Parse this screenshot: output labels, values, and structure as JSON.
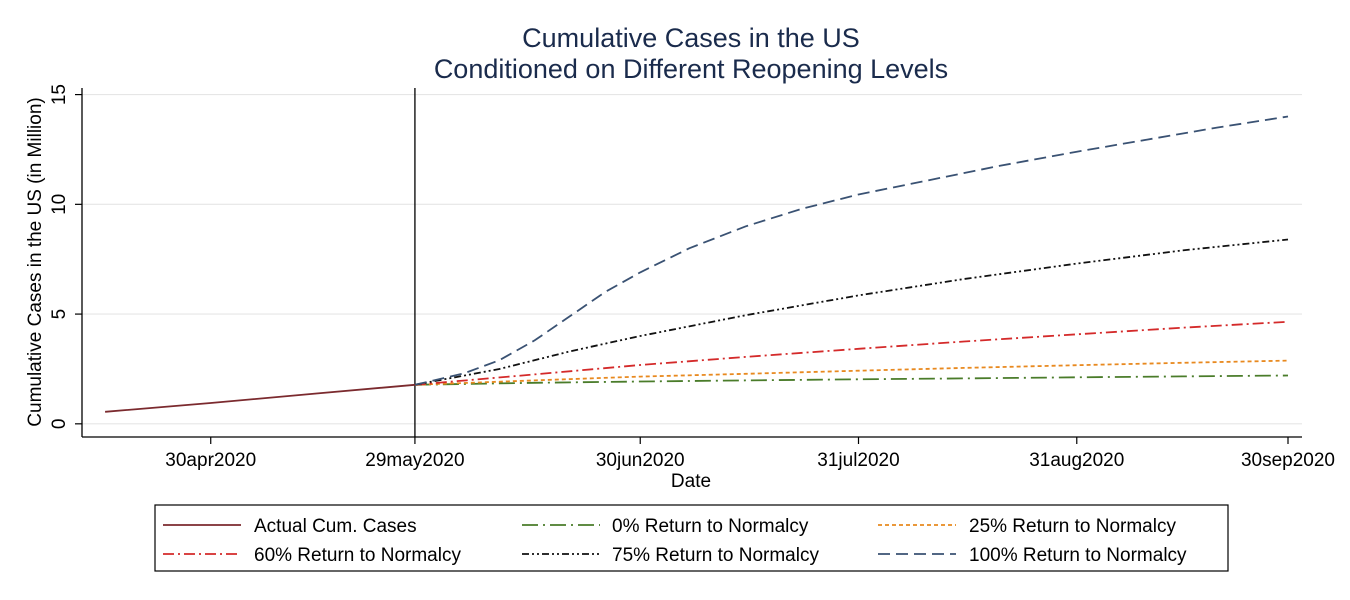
{
  "chart_data": {
    "type": "line",
    "title": "Cumulative Cases in the US",
    "subtitle": "Conditioned on Different Reopening Levels",
    "xlabel": "Date",
    "ylabel": "Cumulative Cases in the US (in Million)",
    "xlim": [
      "2020-04-15",
      "2020-09-30"
    ],
    "ylim": [
      0,
      15
    ],
    "grid": true,
    "legend_position": "bottom",
    "vline": "2020-05-29",
    "x_ticks": [
      {
        "date": "2020-04-30",
        "label": "30apr2020"
      },
      {
        "date": "2020-05-29",
        "label": "29may2020"
      },
      {
        "date": "2020-06-30",
        "label": "30jun2020"
      },
      {
        "date": "2020-07-31",
        "label": "31jul2020"
      },
      {
        "date": "2020-08-31",
        "label": "31aug2020"
      },
      {
        "date": "2020-09-30",
        "label": "30sep2020"
      }
    ],
    "y_ticks": [
      0,
      5,
      10,
      15
    ],
    "series": [
      {
        "name": "Actual Cum. Cases",
        "color": "#7b2a2e",
        "dash": "solid",
        "points": [
          [
            "2020-04-15",
            0.55
          ],
          [
            "2020-04-30",
            0.95
          ],
          [
            "2020-05-15",
            1.38
          ],
          [
            "2020-05-29",
            1.78
          ]
        ]
      },
      {
        "name": "0% Return to Normalcy",
        "color": "#4a7c2a",
        "dash": "longdash-dot",
        "points": [
          [
            "2020-05-29",
            1.78
          ],
          [
            "2020-06-15",
            1.87
          ],
          [
            "2020-06-30",
            1.93
          ],
          [
            "2020-07-15",
            1.98
          ],
          [
            "2020-07-31",
            2.03
          ],
          [
            "2020-08-15",
            2.07
          ],
          [
            "2020-08-31",
            2.12
          ],
          [
            "2020-09-15",
            2.16
          ],
          [
            "2020-09-30",
            2.2
          ]
        ]
      },
      {
        "name": "25% Return to Normalcy",
        "color": "#e8891f",
        "dash": "shortdash",
        "points": [
          [
            "2020-05-29",
            1.78
          ],
          [
            "2020-06-15",
            1.98
          ],
          [
            "2020-06-30",
            2.15
          ],
          [
            "2020-07-15",
            2.28
          ],
          [
            "2020-07-31",
            2.42
          ],
          [
            "2020-08-15",
            2.55
          ],
          [
            "2020-08-31",
            2.67
          ],
          [
            "2020-09-15",
            2.78
          ],
          [
            "2020-09-30",
            2.88
          ]
        ]
      },
      {
        "name": "60% Return to Normalcy",
        "color": "#d42a2a",
        "dash": "dash-dot",
        "points": [
          [
            "2020-05-29",
            1.78
          ],
          [
            "2020-06-15",
            2.25
          ],
          [
            "2020-06-30",
            2.68
          ],
          [
            "2020-07-15",
            3.05
          ],
          [
            "2020-07-31",
            3.42
          ],
          [
            "2020-08-15",
            3.75
          ],
          [
            "2020-08-31",
            4.08
          ],
          [
            "2020-09-15",
            4.38
          ],
          [
            "2020-09-30",
            4.65
          ]
        ]
      },
      {
        "name": "75% Return to Normalcy",
        "color": "#111111",
        "dash": "dash-dot-dot",
        "points": [
          [
            "2020-05-29",
            1.78
          ],
          [
            "2020-06-10",
            2.5
          ],
          [
            "2020-06-20",
            3.3
          ],
          [
            "2020-06-30",
            4.0
          ],
          [
            "2020-07-15",
            4.95
          ],
          [
            "2020-07-31",
            5.85
          ],
          [
            "2020-08-15",
            6.6
          ],
          [
            "2020-08-31",
            7.3
          ],
          [
            "2020-09-15",
            7.9
          ],
          [
            "2020-09-30",
            8.4
          ]
        ]
      },
      {
        "name": "100% Return to Normalcy",
        "color": "#3a5273",
        "dash": "longdash",
        "points": [
          [
            "2020-05-29",
            1.78
          ],
          [
            "2020-06-05",
            2.3
          ],
          [
            "2020-06-10",
            2.9
          ],
          [
            "2020-06-15",
            3.8
          ],
          [
            "2020-06-20",
            4.9
          ],
          [
            "2020-06-25",
            6.0
          ],
          [
            "2020-06-30",
            6.9
          ],
          [
            "2020-07-07",
            8.0
          ],
          [
            "2020-07-15",
            9.0
          ],
          [
            "2020-07-23",
            9.8
          ],
          [
            "2020-07-31",
            10.45
          ],
          [
            "2020-08-10",
            11.1
          ],
          [
            "2020-08-20",
            11.75
          ],
          [
            "2020-08-31",
            12.4
          ],
          [
            "2020-09-10",
            12.95
          ],
          [
            "2020-09-20",
            13.5
          ],
          [
            "2020-09-30",
            14.0
          ]
        ]
      }
    ],
    "legend_order": [
      "Actual Cum. Cases",
      "0% Return to Normalcy",
      "25% Return to Normalcy",
      "60% Return to Normalcy",
      "75% Return to Normalcy",
      "100% Return to Normalcy"
    ]
  }
}
